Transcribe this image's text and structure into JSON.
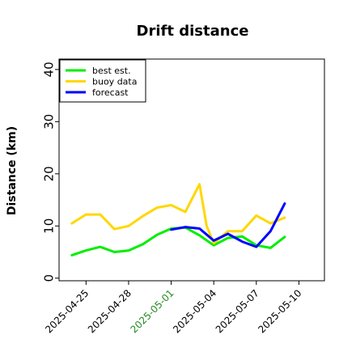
{
  "chart_data": {
    "type": "line",
    "title": "Drift distance",
    "xlabel": "",
    "ylabel": "Distance (km)",
    "ylim": [
      -0.5,
      42
    ],
    "yticks": [
      0,
      10,
      20,
      30,
      40
    ],
    "xticks": [
      {
        "label": "2025-04-25",
        "x": 0,
        "color": "#000000"
      },
      {
        "label": "2025-04-28",
        "x": 3,
        "color": "#000000"
      },
      {
        "label": "2025-05-01",
        "x": 6,
        "color": "#228b22"
      },
      {
        "label": "2025-05-04",
        "x": 9,
        "color": "#000000"
      },
      {
        "label": "2025-05-07",
        "x": 12,
        "color": "#000000"
      },
      {
        "label": "2025-05-10",
        "x": 15,
        "color": "#000000"
      }
    ],
    "xlim": [
      -1.9,
      16.8
    ],
    "grid": false,
    "legend_position": "top-left",
    "series": [
      {
        "name": "best est.",
        "color": "#00ee00",
        "x": [
          -1,
          0,
          1,
          2,
          3,
          4,
          5,
          6,
          7,
          8,
          9,
          10,
          11,
          12,
          13,
          14
        ],
        "y": [
          4.4,
          5.3,
          6.0,
          5.0,
          5.3,
          6.5,
          8.3,
          9.5,
          9.7,
          8.2,
          6.3,
          7.7,
          8.0,
          6.3,
          5.8,
          7.9
        ]
      },
      {
        "name": "buoy data",
        "color": "#ffd700",
        "x": [
          -1,
          0,
          1,
          2,
          3,
          4,
          5,
          6,
          7,
          8,
          8.5,
          9,
          10,
          11,
          12,
          13,
          14
        ],
        "y": [
          10.5,
          12.2,
          12.2,
          9.4,
          10.0,
          11.9,
          13.5,
          14.0,
          12.7,
          18.0,
          10.0,
          6.7,
          9.0,
          9.0,
          12.0,
          10.5,
          11.6
        ]
      },
      {
        "name": "forecast",
        "color": "#0000ff",
        "x": [
          6,
          7,
          8,
          9,
          10,
          11,
          12,
          13,
          14
        ],
        "y": [
          9.3,
          9.8,
          9.5,
          7.2,
          8.5,
          7.0,
          6.0,
          9.0,
          14.3
        ]
      }
    ]
  }
}
